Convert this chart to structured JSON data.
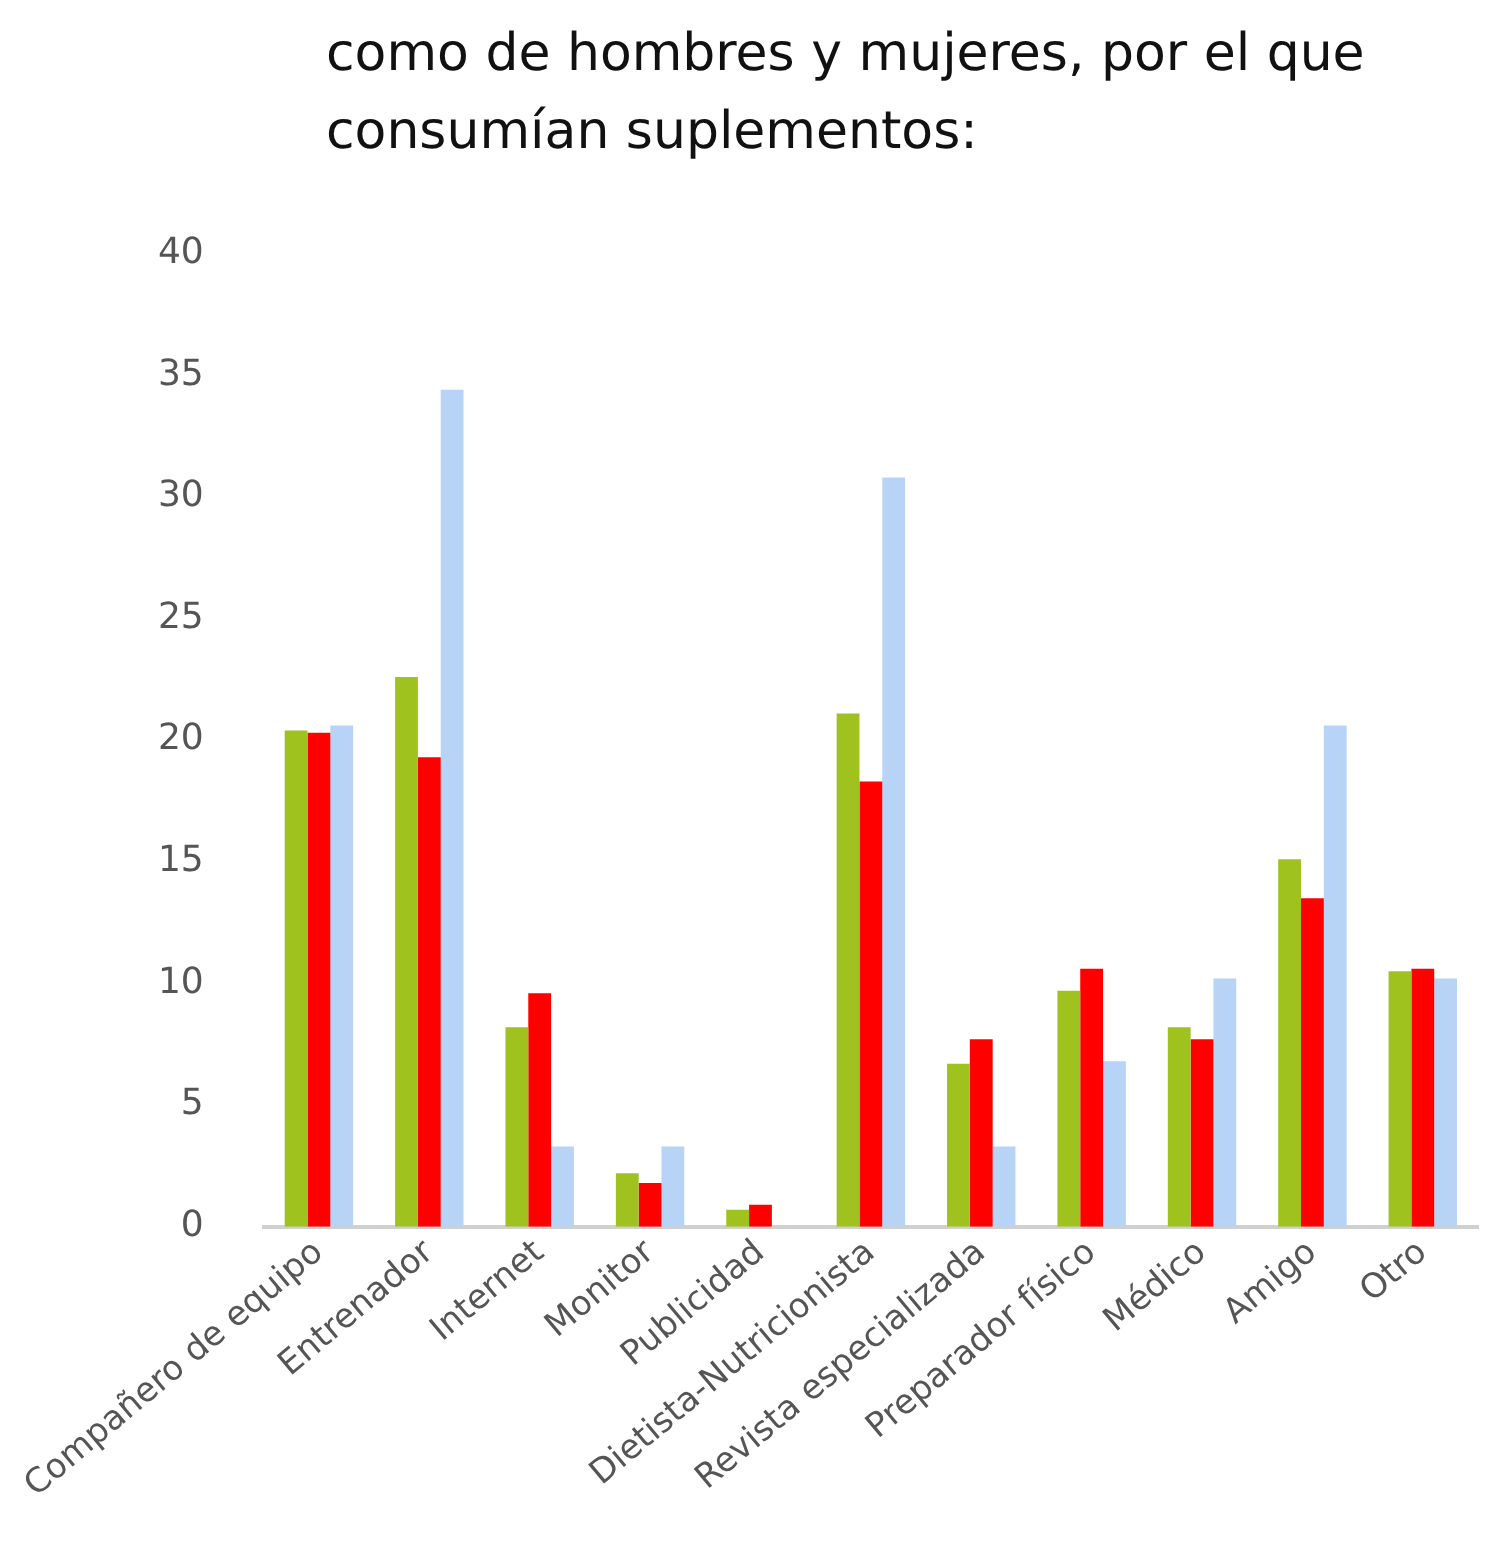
{
  "chart_data": {
    "type": "bar",
    "title": "como de hombres y mujeres, por el que consumían suplementos:",
    "categories": [
      "Compañero de equipo",
      "Entrenador",
      "Internet",
      "Monitor",
      "Publicidad",
      "Dietista-Nutricionista",
      "Revista especializada",
      "Preparador físico",
      "Médico",
      "Amigo",
      "Otro"
    ],
    "series": [
      {
        "color": "#9fc21f",
        "values": [
          20.4,
          22.6,
          8.2,
          2.2,
          0.7,
          21.1,
          6.7,
          9.7,
          8.2,
          15.1,
          10.5
        ]
      },
      {
        "color": "#ff0000",
        "values": [
          20.3,
          19.3,
          9.6,
          1.8,
          0.9,
          18.3,
          7.7,
          10.6,
          7.7,
          13.5,
          10.6
        ]
      },
      {
        "color": "#b7d4f7",
        "values": [
          20.6,
          34.4,
          3.3,
          3.3,
          0,
          30.8,
          3.3,
          6.8,
          10.2,
          20.6,
          10.2
        ]
      }
    ],
    "ylim": [
      0,
      40
    ],
    "yticks": [
      0,
      5,
      10,
      15,
      20,
      25,
      30,
      35,
      40
    ],
    "grid": false,
    "legend": false
  }
}
